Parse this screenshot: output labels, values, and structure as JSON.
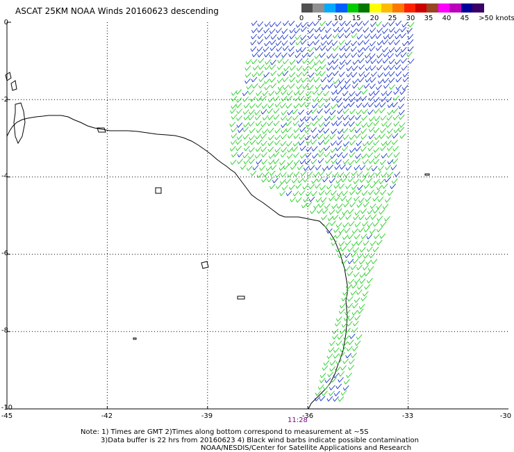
{
  "title": "ASCAT 25KM NOAA Winds 20160623 descending",
  "legend": {
    "colors": [
      "#505050",
      "#909090",
      "#00aaff",
      "#0060ff",
      "#00cc00",
      "#007700",
      "#ffff00",
      "#ffbb00",
      "#ff7700",
      "#ff2200",
      "#cc0000",
      "#994422",
      "#ff00ff",
      "#bb00bb",
      "#000099",
      "#3a0066"
    ],
    "labels": [
      "0",
      "5",
      "10",
      "15",
      "20",
      "25",
      "30",
      "35",
      "40",
      "45",
      ">50 knots"
    ]
  },
  "axes": {
    "x_ticks": [
      "-45",
      "-42",
      "-39",
      "-36",
      "-33",
      "-30"
    ],
    "y_ticks": [
      "0",
      "-2",
      "-4",
      "-6",
      "-8",
      "-10"
    ],
    "lon_range": [
      -45,
      -30
    ],
    "lat_range": [
      -10,
      0
    ]
  },
  "time_label": "11:28",
  "notes": [
    "Note: 1) Times are GMT 2)Times along bottom correspond to measurement at ~5S",
    "3)Data buffer is 22 hrs from 20160623 4) Black wind barbs indicate possible contamination",
    "NOAA/NESDIS/Center for Satellite Applications and Research"
  ],
  "barb_colors": {
    "blue": "#1530c8",
    "green": "#22cc22"
  }
}
